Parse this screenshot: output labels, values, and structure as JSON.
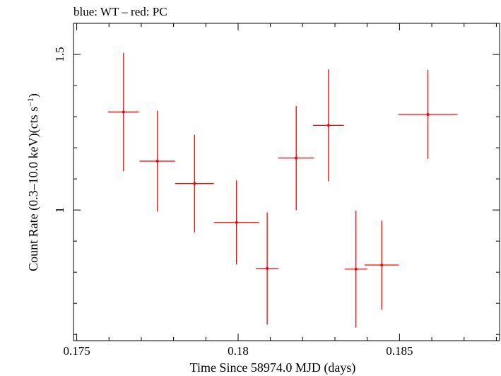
{
  "chart_data": {
    "type": "scatter",
    "title": "blue: WT – red: PC",
    "xlabel": "Time Since 58974.0 MJD (days)",
    "ylabel": "Count Rate (0.3–10.0 keV)(cts s",
    "ylabel_sup": "−1",
    "ylabel_end": ")",
    "xlim": [
      0.1749,
      0.1881
    ],
    "ylim": [
      0.58,
      1.6
    ],
    "x_ticks": [
      0.175,
      0.18,
      0.185
    ],
    "x_tick_labels": [
      "0.175",
      "0.18",
      "0.185"
    ],
    "y_ticks": [
      1.0,
      1.5
    ],
    "y_tick_labels": [
      "1",
      "1.5"
    ],
    "grid": false,
    "series": [
      {
        "color": "#ff0000",
        "points": [
          {
            "x": 0.17645,
            "y": 1.315,
            "xerr": 0.00048,
            "yerr_low": 0.19,
            "yerr_high": 0.19
          },
          {
            "x": 0.1775,
            "y": 1.157,
            "xerr": 0.00055,
            "yerr_low": 0.162,
            "yerr_high": 0.162
          },
          {
            "x": 0.17865,
            "y": 1.085,
            "xerr": 0.0006,
            "yerr_low": 0.157,
            "yerr_high": 0.157
          },
          {
            "x": 0.17995,
            "y": 0.96,
            "xerr": 0.0007,
            "yerr_low": 0.135,
            "yerr_high": 0.135
          },
          {
            "x": 0.1809,
            "y": 0.812,
            "xerr": 0.00035,
            "yerr_low": 0.18,
            "yerr_high": 0.18
          },
          {
            "x": 0.1818,
            "y": 1.167,
            "xerr": 0.00055,
            "yerr_low": 0.167,
            "yerr_high": 0.167
          },
          {
            "x": 0.1828,
            "y": 1.272,
            "xerr": 0.00048,
            "yerr_low": 0.18,
            "yerr_high": 0.18
          },
          {
            "x": 0.18365,
            "y": 0.81,
            "xerr": 0.00035,
            "yerr_low": 0.188,
            "yerr_high": 0.188
          },
          {
            "x": 0.18445,
            "y": 0.823,
            "xerr": 0.00053,
            "yerr_low": 0.143,
            "yerr_high": 0.143
          },
          {
            "x": 0.18588,
            "y": 1.307,
            "xerr": 0.00092,
            "yerr_low": 0.143,
            "yerr_high": 0.143
          }
        ]
      }
    ]
  }
}
